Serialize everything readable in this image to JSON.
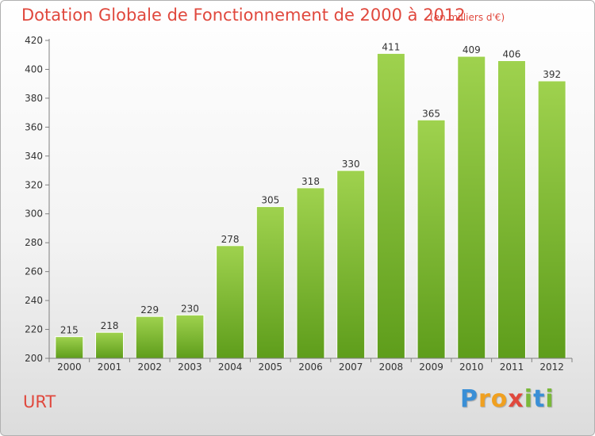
{
  "page": {
    "title": "Dotation Globale de Fonctionnement de 2000 à 2012",
    "unit_note": "(en milliers d'€)",
    "place": "URT"
  },
  "logo": {
    "letters": [
      {
        "char": "P",
        "color": "#3a8fd6"
      },
      {
        "char": "r",
        "color": "#f0a020"
      },
      {
        "char": "o",
        "color": "#f0a020"
      },
      {
        "char": "x",
        "color": "#e0483d"
      },
      {
        "char": "i",
        "color": "#7ab83a"
      },
      {
        "char": "t",
        "color": "#3a8fd6"
      },
      {
        "char": "i",
        "color": "#7ab83a"
      }
    ]
  },
  "colors": {
    "title": "#e0483d",
    "bar_top": "#9fd24e",
    "bar_bottom": "#5e9d1b",
    "grid": "#ffffff",
    "axis": "#7f7f7f",
    "text": "#333333"
  },
  "chart_data": {
    "type": "bar",
    "title": "Dotation Globale de Fonctionnement de 2000 à 2012",
    "xlabel": "",
    "ylabel": "",
    "categories": [
      "2000",
      "2001",
      "2002",
      "2003",
      "2004",
      "2005",
      "2006",
      "2007",
      "2008",
      "2009",
      "2010",
      "2011",
      "2012"
    ],
    "values": [
      215,
      218,
      229,
      230,
      278,
      305,
      318,
      330,
      411,
      365,
      409,
      406,
      392
    ],
    "ylim": [
      200,
      420
    ],
    "yticks": [
      200,
      220,
      240,
      260,
      280,
      300,
      320,
      340,
      360,
      380,
      400,
      420
    ],
    "grid": false,
    "legend": "none",
    "data_labels": true
  }
}
